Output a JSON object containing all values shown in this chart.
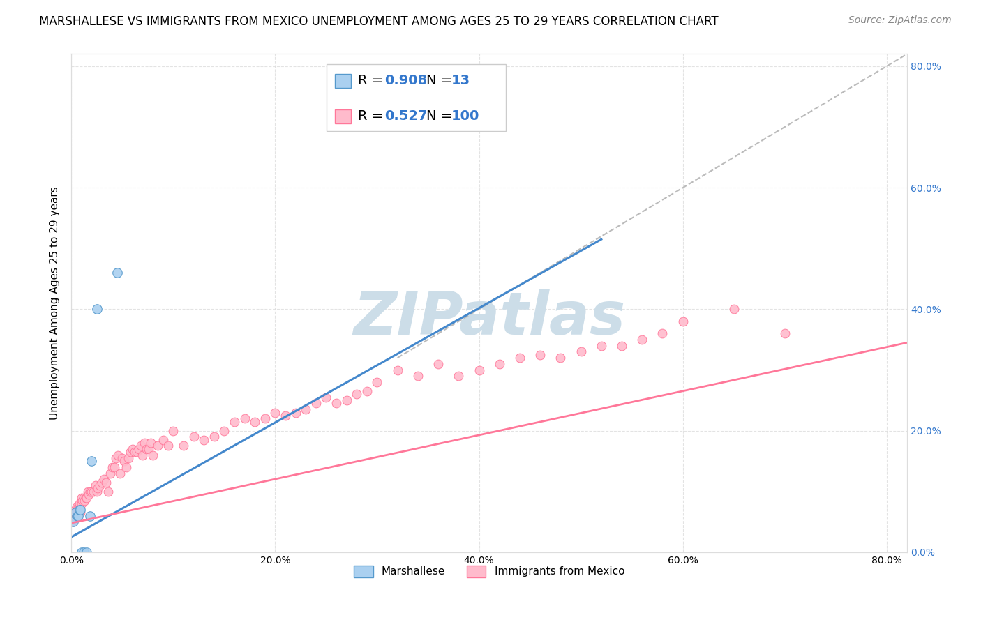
{
  "title": "MARSHALLESE VS IMMIGRANTS FROM MEXICO UNEMPLOYMENT AMONG AGES 25 TO 29 YEARS CORRELATION CHART",
  "source": "Source: ZipAtlas.com",
  "ylabel": "Unemployment Among Ages 25 to 29 years",
  "xlim": [
    0.0,
    0.82
  ],
  "ylim": [
    0.0,
    0.82
  ],
  "xticks": [
    0.0,
    0.2,
    0.4,
    0.6,
    0.8
  ],
  "xticklabels": [
    "0.0%",
    "20.0%",
    "40.0%",
    "60.0%",
    "80.0%"
  ],
  "yticks_right": [
    0.0,
    0.2,
    0.4,
    0.6,
    0.8
  ],
  "yticklabels_right": [
    "0.0%",
    "20.0%",
    "40.0%",
    "60.0%",
    "80.0%"
  ],
  "marshallese_R": "0.908",
  "marshallese_N": "13",
  "mexico_R": "0.527",
  "mexico_N": "100",
  "marshallese_face": "#aad0f0",
  "marshallese_edge": "#5599cc",
  "mexico_face": "#ffbbcc",
  "mexico_edge": "#ff7799",
  "blue_line_color": "#4488cc",
  "pink_line_color": "#ff7799",
  "dashed_color": "#bbbbbb",
  "watermark_text": "ZIPatlas",
  "watermark_color": "#ccdde8",
  "legend_R_color": "#3377cc",
  "legend_N_color": "#3377cc",
  "background": "#ffffff",
  "grid_color": "#dddddd",
  "right_tick_color": "#3377cc",
  "marshallese_x": [
    0.002,
    0.004,
    0.006,
    0.007,
    0.008,
    0.009,
    0.01,
    0.012,
    0.015,
    0.018,
    0.02,
    0.025,
    0.045
  ],
  "marshallese_y": [
    0.05,
    0.065,
    0.06,
    0.06,
    0.07,
    0.07,
    0.0,
    0.0,
    0.0,
    0.06,
    0.15,
    0.4,
    0.46
  ],
  "mexico_x": [
    0.001,
    0.001,
    0.002,
    0.002,
    0.003,
    0.003,
    0.004,
    0.004,
    0.005,
    0.005,
    0.006,
    0.006,
    0.007,
    0.007,
    0.008,
    0.008,
    0.009,
    0.01,
    0.01,
    0.011,
    0.012,
    0.013,
    0.014,
    0.015,
    0.016,
    0.017,
    0.018,
    0.02,
    0.022,
    0.024,
    0.025,
    0.026,
    0.028,
    0.03,
    0.032,
    0.034,
    0.036,
    0.038,
    0.04,
    0.042,
    0.044,
    0.046,
    0.048,
    0.05,
    0.052,
    0.054,
    0.056,
    0.058,
    0.06,
    0.062,
    0.064,
    0.066,
    0.068,
    0.07,
    0.072,
    0.074,
    0.076,
    0.078,
    0.08,
    0.085,
    0.09,
    0.095,
    0.1,
    0.11,
    0.12,
    0.13,
    0.14,
    0.15,
    0.16,
    0.17,
    0.18,
    0.19,
    0.2,
    0.21,
    0.22,
    0.23,
    0.24,
    0.25,
    0.26,
    0.27,
    0.28,
    0.29,
    0.3,
    0.32,
    0.34,
    0.36,
    0.38,
    0.4,
    0.42,
    0.44,
    0.46,
    0.48,
    0.5,
    0.52,
    0.54,
    0.56,
    0.58,
    0.6,
    0.65,
    0.7
  ],
  "mexico_y": [
    0.05,
    0.055,
    0.055,
    0.06,
    0.06,
    0.065,
    0.065,
    0.07,
    0.07,
    0.075,
    0.065,
    0.07,
    0.07,
    0.075,
    0.075,
    0.08,
    0.065,
    0.08,
    0.09,
    0.085,
    0.09,
    0.085,
    0.09,
    0.09,
    0.1,
    0.095,
    0.1,
    0.1,
    0.1,
    0.11,
    0.1,
    0.105,
    0.11,
    0.115,
    0.12,
    0.115,
    0.1,
    0.13,
    0.14,
    0.14,
    0.155,
    0.16,
    0.13,
    0.155,
    0.15,
    0.14,
    0.155,
    0.165,
    0.17,
    0.165,
    0.165,
    0.17,
    0.175,
    0.16,
    0.18,
    0.17,
    0.17,
    0.18,
    0.16,
    0.175,
    0.185,
    0.175,
    0.2,
    0.175,
    0.19,
    0.185,
    0.19,
    0.2,
    0.215,
    0.22,
    0.215,
    0.22,
    0.23,
    0.225,
    0.23,
    0.235,
    0.245,
    0.255,
    0.245,
    0.25,
    0.26,
    0.265,
    0.28,
    0.3,
    0.29,
    0.31,
    0.29,
    0.3,
    0.31,
    0.32,
    0.325,
    0.32,
    0.33,
    0.34,
    0.34,
    0.35,
    0.36,
    0.38,
    0.4,
    0.36
  ],
  "title_fontsize": 12,
  "source_fontsize": 10,
  "axis_label_fontsize": 11,
  "tick_fontsize": 10,
  "legend_fontsize": 14
}
